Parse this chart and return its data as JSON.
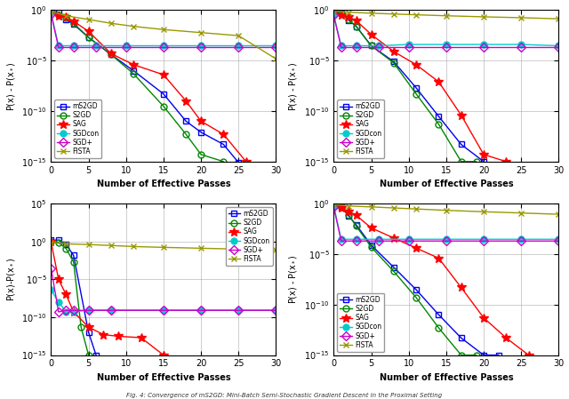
{
  "subplots": [
    {
      "ylabel": "P(x) - P(x$_*$)",
      "xlabel": "Number of Effective Passes",
      "ylim_log": [
        -15,
        0
      ],
      "xlim": [
        0,
        30
      ],
      "legend_loc": "lower left",
      "series": {
        "mS2GD": {
          "color": "#0000EE",
          "marker": "s",
          "mfc": "none",
          "x": [
            0,
            1,
            2,
            3,
            5,
            8,
            11,
            15,
            18,
            20,
            23,
            25
          ],
          "y": [
            0.85,
            0.55,
            0.12,
            0.04,
            0.002,
            4e-05,
            1e-06,
            5e-09,
            1e-11,
            8e-13,
            5e-14,
            8e-16
          ]
        },
        "S2GD": {
          "color": "#008800",
          "marker": "o",
          "mfc": "none",
          "x": [
            0,
            1,
            2,
            3,
            5,
            8,
            11,
            15,
            18,
            20,
            23
          ],
          "y": [
            0.95,
            0.35,
            0.18,
            0.05,
            0.002,
            4e-05,
            5e-07,
            3e-10,
            5e-13,
            5e-15,
            1e-15
          ]
        },
        "SAG": {
          "color": "#FF0000",
          "marker": "*",
          "mfc": "#FF0000",
          "x": [
            0,
            1,
            2,
            3,
            5,
            8,
            11,
            15,
            18,
            20,
            23,
            26
          ],
          "y": [
            0.9,
            0.28,
            0.22,
            0.08,
            0.008,
            5e-05,
            4e-06,
            4e-07,
            1e-09,
            1e-11,
            5e-13,
            1e-15
          ]
        },
        "SGDcon": {
          "color": "#00CCCC",
          "marker": "o",
          "mfc": "#00CCCC",
          "x": [
            0,
            1,
            3,
            6,
            10,
            15,
            20,
            25,
            30
          ],
          "y": [
            0.55,
            0.0003,
            0.0003,
            0.0003,
            0.0003,
            0.0003,
            0.0003,
            0.0003,
            0.0003
          ]
        },
        "SGD+": {
          "color": "#CC00CC",
          "marker": "D",
          "mfc": "none",
          "x": [
            0,
            1,
            3,
            6,
            10,
            15,
            20,
            25,
            30
          ],
          "y": [
            0.4,
            0.0002,
            0.0002,
            0.0002,
            0.0002,
            0.0002,
            0.0002,
            0.0002,
            0.0002
          ]
        },
        "FISTA": {
          "color": "#999900",
          "marker": "x",
          "mfc": "#999900",
          "x": [
            0,
            2,
            5,
            8,
            11,
            15,
            20,
            25,
            30
          ],
          "y": [
            0.75,
            0.28,
            0.12,
            0.05,
            0.025,
            0.012,
            0.006,
            0.003,
            1.5e-05
          ]
        }
      }
    },
    {
      "ylabel": "P(x) - P(x$_*$)",
      "xlabel": "Number of Effective Passes",
      "ylim_log": [
        -15,
        0
      ],
      "xlim": [
        0,
        30
      ],
      "legend_loc": "lower left",
      "series": {
        "mS2GD": {
          "color": "#0000EE",
          "marker": "s",
          "mfc": "none",
          "x": [
            0,
            1,
            2,
            3,
            5,
            8,
            11,
            14,
            17,
            20
          ],
          "y": [
            0.7,
            0.5,
            0.1,
            0.025,
            0.0003,
            8e-06,
            2e-08,
            3e-11,
            5e-14,
            1e-15
          ]
        },
        "S2GD": {
          "color": "#008800",
          "marker": "o",
          "mfc": "none",
          "x": [
            0,
            1,
            2,
            3,
            5,
            8,
            11,
            14,
            17,
            19
          ],
          "y": [
            0.9,
            0.5,
            0.12,
            0.025,
            0.0003,
            6e-06,
            5e-09,
            5e-12,
            1e-15,
            1e-15
          ]
        },
        "SAG": {
          "color": "#FF0000",
          "marker": "*",
          "mfc": "#FF0000",
          "x": [
            0,
            1,
            2,
            3,
            5,
            8,
            11,
            14,
            17,
            20,
            23
          ],
          "y": [
            0.55,
            0.35,
            0.22,
            0.09,
            0.004,
            8e-05,
            4e-06,
            8e-08,
            4e-11,
            5e-15,
            1e-15
          ]
        },
        "SGDcon": {
          "color": "#00CCCC",
          "marker": "o",
          "mfc": "#00CCCC",
          "x": [
            0,
            1,
            3,
            6,
            10,
            15,
            20,
            25,
            30
          ],
          "y": [
            0.35,
            0.0003,
            0.0003,
            0.0003,
            0.0004,
            0.0004,
            0.0004,
            0.0004,
            0.0003
          ]
        },
        "SGD+": {
          "color": "#CC00CC",
          "marker": "D",
          "mfc": "none",
          "x": [
            0,
            1,
            3,
            6,
            10,
            15,
            20,
            25,
            30
          ],
          "y": [
            0.3,
            0.0002,
            0.0002,
            0.0002,
            0.0002,
            0.0002,
            0.0002,
            0.0002,
            0.0002
          ]
        },
        "FISTA": {
          "color": "#999900",
          "marker": "x",
          "mfc": "#999900",
          "x": [
            0,
            2,
            5,
            8,
            11,
            15,
            20,
            25,
            30
          ],
          "y": [
            0.85,
            0.62,
            0.5,
            0.42,
            0.35,
            0.28,
            0.22,
            0.18,
            0.14
          ]
        }
      }
    },
    {
      "ylabel": "P(x)-P(x$_*$)",
      "xlabel": "Number of Effective Passes",
      "ylim_log": [
        -15,
        5
      ],
      "xlim": [
        0,
        30
      ],
      "legend_loc": "upper right",
      "series": {
        "mS2GD": {
          "color": "#0000EE",
          "marker": "s",
          "mfc": "none",
          "x": [
            0,
            1,
            2,
            3,
            5,
            6
          ],
          "y": [
            1.5,
            1.5,
            0.4,
            0.015,
            1e-12,
            1e-15
          ]
        },
        "S2GD": {
          "color": "#008800",
          "marker": "o",
          "mfc": "none",
          "x": [
            0,
            1,
            2,
            3,
            4,
            5
          ],
          "y": [
            0.9,
            0.75,
            0.12,
            0.002,
            5e-12,
            1e-15
          ]
        },
        "SAG": {
          "color": "#FF0000",
          "marker": "*",
          "mfc": "#FF0000",
          "x": [
            0,
            1,
            2,
            3,
            5,
            7,
            9,
            12,
            15
          ],
          "y": [
            0.85,
            1e-05,
            1e-07,
            5e-10,
            5e-12,
            5e-13,
            3e-13,
            2e-13,
            1e-15
          ]
        },
        "SGDcon": {
          "color": "#00CCCC",
          "marker": "o",
          "mfc": "#00CCCC",
          "x": [
            0,
            1,
            2,
            3,
            5,
            8,
            15,
            20,
            25,
            30
          ],
          "y": [
            4e-07,
            1e-08,
            5e-10,
            5e-10,
            9e-10,
            9e-10,
            9e-10,
            9e-10,
            9e-10,
            9e-10
          ]
        },
        "SGD+": {
          "color": "#CC00CC",
          "marker": "D",
          "mfc": "none",
          "x": [
            0,
            1,
            2,
            3,
            5,
            8,
            15,
            20,
            25,
            30
          ],
          "y": [
            0.0003,
            5e-10,
            8e-10,
            8e-10,
            8e-10,
            8e-10,
            8e-10,
            8e-10,
            8e-10,
            8e-10
          ]
        },
        "FISTA": {
          "color": "#999900",
          "marker": "x",
          "mfc": "#999900",
          "x": [
            0,
            2,
            5,
            8,
            11,
            15,
            20,
            25,
            30
          ],
          "y": [
            0.82,
            0.5,
            0.4,
            0.3,
            0.22,
            0.17,
            0.13,
            0.1,
            0.08
          ]
        }
      }
    },
    {
      "ylabel": "P(x) - P(x$_*$)",
      "xlabel": "Number of Effective Passes",
      "ylim_log": [
        -15,
        0
      ],
      "xlim": [
        0,
        30
      ],
      "legend_loc": "lower left",
      "series": {
        "mS2GD": {
          "color": "#0000EE",
          "marker": "s",
          "mfc": "none",
          "x": [
            0,
            1,
            2,
            3,
            5,
            8,
            11,
            14,
            17,
            20,
            22
          ],
          "y": [
            0.7,
            0.5,
            0.06,
            0.008,
            8e-05,
            5e-07,
            3e-09,
            1e-11,
            5e-14,
            1e-15,
            1e-15
          ]
        },
        "S2GD": {
          "color": "#008800",
          "marker": "o",
          "mfc": "none",
          "x": [
            0,
            1,
            2,
            3,
            5,
            8,
            11,
            14,
            17,
            19
          ],
          "y": [
            0.9,
            0.5,
            0.08,
            0.006,
            5e-05,
            2e-07,
            5e-10,
            5e-13,
            1e-15,
            1e-15
          ]
        },
        "SAG": {
          "color": "#FF0000",
          "marker": "*",
          "mfc": "#FF0000",
          "x": [
            0,
            1,
            2,
            3,
            5,
            8,
            11,
            14,
            17,
            20,
            23,
            26
          ],
          "y": [
            0.7,
            0.35,
            0.18,
            0.07,
            0.004,
            0.0004,
            4e-05,
            4e-06,
            5e-09,
            5e-12,
            5e-14,
            1e-15
          ]
        },
        "SGDcon": {
          "color": "#00CCCC",
          "marker": "o",
          "mfc": "#00CCCC",
          "x": [
            0,
            1,
            3,
            6,
            10,
            15,
            20,
            25,
            30
          ],
          "y": [
            0.6,
            0.0003,
            0.0003,
            0.0003,
            0.0003,
            0.0003,
            0.0003,
            0.0003,
            0.0003
          ]
        },
        "SGD+": {
          "color": "#CC00CC",
          "marker": "D",
          "mfc": "none",
          "x": [
            0,
            1,
            3,
            6,
            10,
            15,
            20,
            25,
            30
          ],
          "y": [
            0.45,
            0.0002,
            0.0002,
            0.0002,
            0.0002,
            0.0002,
            0.0002,
            0.0002,
            0.0002
          ]
        },
        "FISTA": {
          "color": "#999900",
          "marker": "x",
          "mfc": "#999900",
          "x": [
            0,
            2,
            5,
            8,
            11,
            15,
            20,
            25,
            30
          ],
          "y": [
            0.82,
            0.6,
            0.48,
            0.38,
            0.3,
            0.22,
            0.16,
            0.12,
            0.09
          ]
        }
      }
    }
  ],
  "caption": "Fig. 4: Convergence of mS2GD: Mini-Batch Semi-Stochastic Gradient Descent in the Proximal Setting",
  "figure_bg": "#FFFFFF"
}
